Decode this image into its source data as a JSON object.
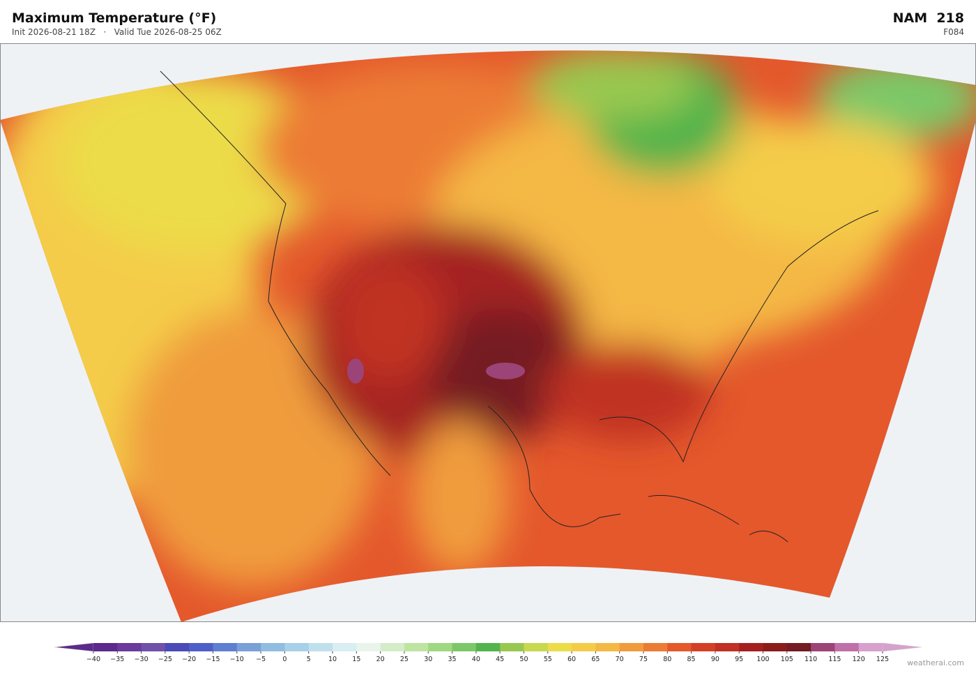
{
  "header": {
    "title": "Maximum Temperature  (°F)",
    "subtitle": "Init 2026-08-21 18Z   ·   Valid Tue 2026-08-25 06Z",
    "model": "NAM  218",
    "forecast_hour": "F084"
  },
  "colorbar": {
    "ticks": [
      {
        "value": -40,
        "label": "−40"
      },
      {
        "value": -35,
        "label": "−35"
      },
      {
        "value": -30,
        "label": "−30"
      },
      {
        "value": -25,
        "label": "−25"
      },
      {
        "value": -20,
        "label": "−20"
      },
      {
        "value": -15,
        "label": "−15"
      },
      {
        "value": -10,
        "label": "−10"
      },
      {
        "value": -5,
        "label": "−5"
      },
      0,
      5,
      10,
      15,
      20,
      25,
      30,
      35,
      40,
      45,
      50,
      55,
      60,
      65,
      70,
      75,
      80,
      85,
      90,
      95,
      100,
      105,
      110,
      115,
      120,
      125
    ],
    "colors": [
      "#5b2a8c",
      "#6a3a9c",
      "#7050a8",
      "#4a4ab8",
      "#4f5fc8",
      "#5f80d0",
      "#7aa0d8",
      "#90bde0",
      "#a8d0e8",
      "#c0e0ee",
      "#d8eef2",
      "#e8f4ec",
      "#d4ecc8",
      "#bde4a0",
      "#a0d880",
      "#7cc868",
      "#52b44c",
      "#98c850",
      "#c8d850",
      "#ecdc48",
      "#f4cc48",
      "#f4b844",
      "#f09c3c",
      "#ec7c34",
      "#e4582c",
      "#d44026",
      "#c03024",
      "#a42020",
      "#8c1c1c",
      "#741c24",
      "#9c4478",
      "#c070a8",
      "#d8a0cc"
    ]
  },
  "credit": "weatherai.com"
}
